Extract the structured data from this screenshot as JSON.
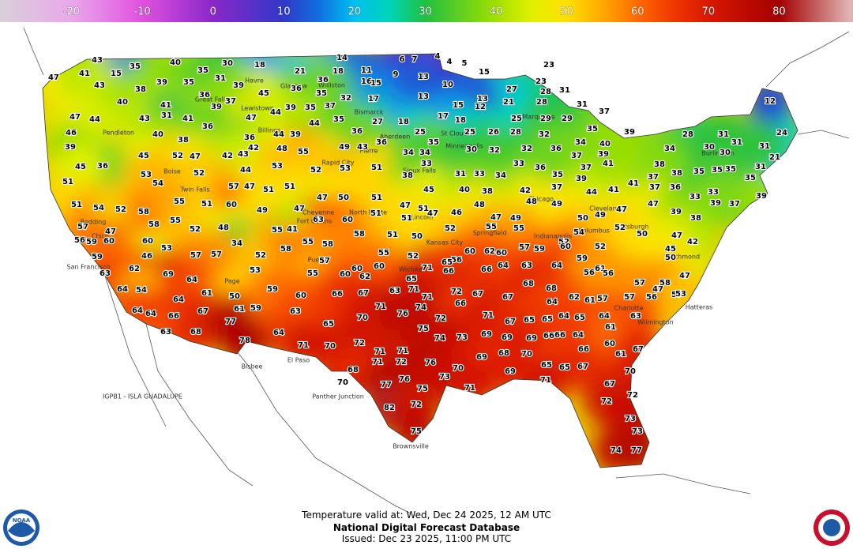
{
  "colorbar": {
    "range": [
      -30,
      90
    ],
    "ticks": [
      -20,
      -10,
      0,
      10,
      20,
      30,
      40,
      50,
      60,
      70,
      80
    ]
  },
  "map": {
    "temperatures": [
      43,
      35,
      15,
      40,
      35,
      30,
      18,
      21,
      14,
      18,
      11,
      6,
      7,
      4,
      5,
      4,
      9,
      16,
      13,
      10,
      15,
      23,
      23,
      47,
      41,
      43,
      38,
      39,
      35,
      31,
      39,
      45,
      36,
      35,
      36,
      15,
      32,
      17,
      13,
      15,
      13,
      27,
      28,
      31,
      28,
      21,
      12,
      40,
      41,
      36,
      37,
      37,
      39,
      35,
      47,
      44,
      43,
      41,
      31,
      39,
      47,
      44,
      44,
      35,
      27,
      18,
      17,
      18,
      25,
      25,
      26,
      28,
      25,
      29,
      29,
      31,
      37,
      39,
      35,
      34,
      40,
      46,
      40,
      38,
      36,
      36,
      42,
      44,
      39,
      48,
      55,
      49,
      43,
      36,
      36,
      34,
      35,
      34,
      30,
      32,
      32,
      32,
      36,
      37,
      41,
      39,
      39,
      45,
      52,
      47,
      42,
      43,
      44,
      53,
      52,
      53,
      51,
      38,
      33,
      31,
      33,
      34,
      33,
      36,
      35,
      37,
      39,
      51,
      36,
      45,
      53,
      54,
      52,
      57,
      47,
      51,
      51,
      47,
      50,
      51,
      47,
      45,
      40,
      38,
      42,
      37,
      44,
      41,
      41,
      37,
      37,
      38,
      35,
      35,
      28,
      30,
      30,
      35,
      35,
      31,
      21,
      24,
      12,
      31,
      31,
      31,
      34,
      36,
      33,
      33,
      39,
      37,
      39,
      38,
      51,
      54,
      52,
      58,
      55,
      51,
      60,
      49,
      47,
      63,
      60,
      51,
      51,
      51,
      47,
      46,
      48,
      47,
      49,
      48,
      49,
      50,
      49,
      47,
      47,
      39,
      38,
      57,
      47,
      58,
      55,
      52,
      48,
      34,
      55,
      41,
      55,
      58,
      58,
      51,
      50,
      52,
      55,
      55,
      52,
      54,
      52,
      52,
      50,
      47,
      42,
      45,
      56,
      59,
      60,
      60,
      53,
      57,
      57,
      52,
      58,
      57,
      60,
      55,
      52,
      56,
      60,
      62,
      60,
      57,
      59,
      60,
      59,
      61,
      50,
      59,
      46,
      63,
      62,
      69,
      64,
      53,
      55,
      60,
      62,
      60,
      65,
      71,
      66,
      65,
      66,
      64,
      63,
      64,
      56,
      56,
      57,
      47,
      47,
      57,
      64,
      54,
      64,
      61,
      50,
      59,
      60,
      66,
      67,
      63,
      71,
      71,
      72,
      67,
      67,
      68,
      68,
      62,
      61,
      57,
      57,
      56,
      58,
      53,
      64,
      64,
      66,
      67,
      61,
      59,
      63,
      65,
      70,
      71,
      76,
      74,
      72,
      66,
      71,
      67,
      65,
      64,
      65,
      64,
      65,
      64,
      61,
      63,
      63,
      68,
      77,
      64,
      71,
      70,
      72,
      71,
      71,
      75,
      74,
      73,
      69,
      69,
      69,
      66,
      66,
      64,
      66,
      60,
      61,
      67,
      78,
      71,
      72,
      76,
      70,
      69,
      68,
      70,
      65,
      65,
      67,
      70,
      70,
      68,
      77,
      76,
      75,
      73,
      71,
      69,
      71,
      67,
      72,
      72,
      73,
      73,
      74,
      77,
      82,
      72,
      75
    ],
    "cities": [
      "Havre",
      "Glasgow",
      "Williston",
      "Bismarck",
      "Great Falls",
      "Lewistown",
      "Billings",
      "Aberdeen",
      "Pierre",
      "Rapid City",
      "Sioux Falls",
      "Minneapolis",
      "St Cloud",
      "Marquette",
      "Pendleton",
      "Boise",
      "Twin Falls",
      "Chico",
      "Redding",
      "San Francisco",
      "Page",
      "Bisbee",
      "El Paso",
      "Fort Collins",
      "Pueblo",
      "Cheyenne",
      "North Platte",
      "Lincoln",
      "Kansas City",
      "Wichita",
      "Springfield",
      "Indianapolis",
      "Columbus",
      "Chicago",
      "Cleveland",
      "Pittsburgh",
      "Richmond",
      "Charlotte",
      "Wilmington",
      "Hatteras",
      "Burlington",
      "Brownsville",
      "Panther Junction"
    ],
    "station": "IGPB1 - ISLA GUADALUPE"
  },
  "footer": {
    "valid": "Temperature valid at: Wed, Dec 24 2025, 12 AM UTC",
    "title": "National Digital Forecast Database",
    "issued": "Issued: Dec 23 2025, 11:00 PM UTC"
  },
  "logo": "NOAA"
}
